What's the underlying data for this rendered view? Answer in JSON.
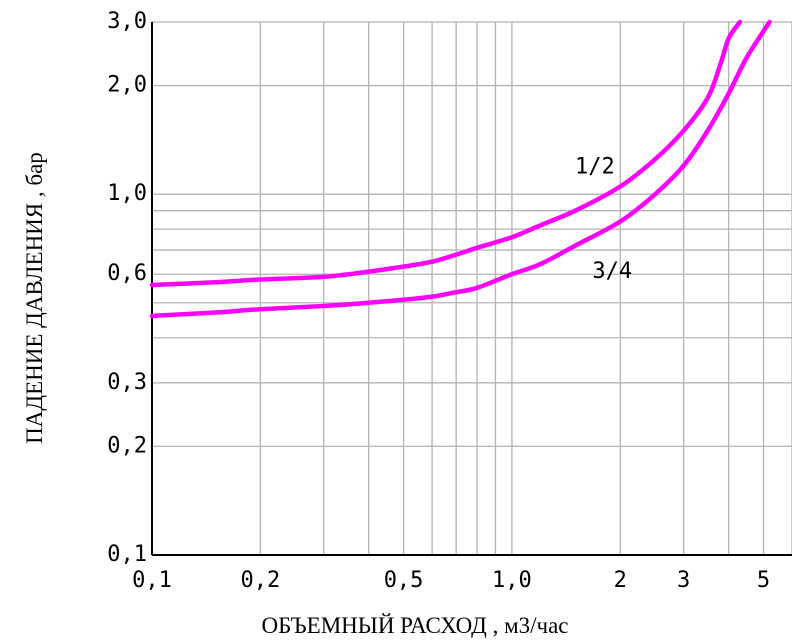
{
  "chart_data": {
    "type": "line",
    "title": "",
    "xlabel": "ОБЪЕМНЫЙ РАСХОД , м3/час",
    "ylabel": "ПАДЕНИЕ ДАВЛЕНИЯ , бар",
    "x_scale": "log",
    "y_scale": "log",
    "xlim": [
      0.1,
      6
    ],
    "ylim": [
      0.1,
      3
    ],
    "grid": true,
    "x_ticks": [
      {
        "value": 0.1,
        "label": "0,1"
      },
      {
        "value": 0.2,
        "label": "0,2"
      },
      {
        "value": 0.5,
        "label": "0,5"
      },
      {
        "value": 1.0,
        "label": "1,0"
      },
      {
        "value": 2,
        "label": "2"
      },
      {
        "value": 3,
        "label": "3"
      },
      {
        "value": 5,
        "label": "5"
      }
    ],
    "y_ticks": [
      {
        "value": 0.1,
        "label": "0,1"
      },
      {
        "value": 0.2,
        "label": "0,2"
      },
      {
        "value": 0.3,
        "label": "0,3"
      },
      {
        "value": 0.6,
        "label": "0,6"
      },
      {
        "value": 1.0,
        "label": "1,0"
      },
      {
        "value": 2.0,
        "label": "2,0"
      },
      {
        "value": 3.0,
        "label": "3,0"
      }
    ],
    "x_gridlines": [
      0.1,
      0.2,
      0.3,
      0.4,
      0.5,
      0.6,
      0.7,
      0.8,
      0.9,
      1,
      2,
      3,
      4,
      5,
      6
    ],
    "y_gridlines": [
      0.1,
      0.2,
      0.3,
      0.4,
      0.5,
      0.6,
      0.7,
      0.8,
      0.9,
      1,
      2,
      3
    ],
    "line_color": "#ff00ff",
    "series": [
      {
        "name": "1/2",
        "x": [
          0.1,
          0.15,
          0.2,
          0.3,
          0.4,
          0.5,
          0.6,
          0.7,
          0.8,
          1.0,
          1.2,
          1.5,
          2.0,
          2.5,
          3.0,
          3.5,
          3.8,
          4.0,
          4.3
        ],
        "y": [
          0.56,
          0.57,
          0.58,
          0.59,
          0.61,
          0.63,
          0.65,
          0.68,
          0.71,
          0.76,
          0.82,
          0.9,
          1.05,
          1.25,
          1.5,
          1.85,
          2.3,
          2.7,
          3.0
        ]
      },
      {
        "name": "3/4",
        "x": [
          0.1,
          0.15,
          0.2,
          0.3,
          0.4,
          0.5,
          0.6,
          0.7,
          0.8,
          1.0,
          1.2,
          1.5,
          2.0,
          2.5,
          3.0,
          3.5,
          4.0,
          4.5,
          5.2
        ],
        "y": [
          0.46,
          0.47,
          0.48,
          0.49,
          0.5,
          0.51,
          0.52,
          0.535,
          0.55,
          0.6,
          0.64,
          0.72,
          0.84,
          1.0,
          1.2,
          1.5,
          1.9,
          2.4,
          3.0
        ]
      }
    ]
  }
}
